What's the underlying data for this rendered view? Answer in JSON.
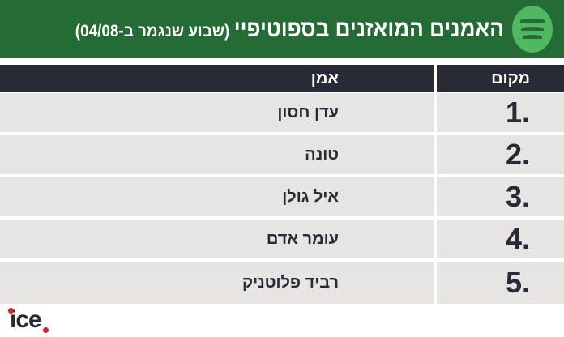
{
  "header": {
    "title": "האמנים המואזנים בספוטיפיי",
    "subtitle": "(שבוע שנגמר ב-04/08)",
    "logo": "spotify-icon",
    "color": "#256b35"
  },
  "table": {
    "columns": {
      "rank": "מקום",
      "artist": "אמן"
    },
    "rows": [
      {
        "rank": "1.",
        "artist": "עדן חסון"
      },
      {
        "rank": "2.",
        "artist": "טונה"
      },
      {
        "rank": "3.",
        "artist": "איל גולן"
      },
      {
        "rank": "4.",
        "artist": "עומר אדם"
      },
      {
        "rank": "5.",
        "artist": "רביד פלוטניק"
      }
    ]
  },
  "footer": {
    "brand": "ice"
  }
}
